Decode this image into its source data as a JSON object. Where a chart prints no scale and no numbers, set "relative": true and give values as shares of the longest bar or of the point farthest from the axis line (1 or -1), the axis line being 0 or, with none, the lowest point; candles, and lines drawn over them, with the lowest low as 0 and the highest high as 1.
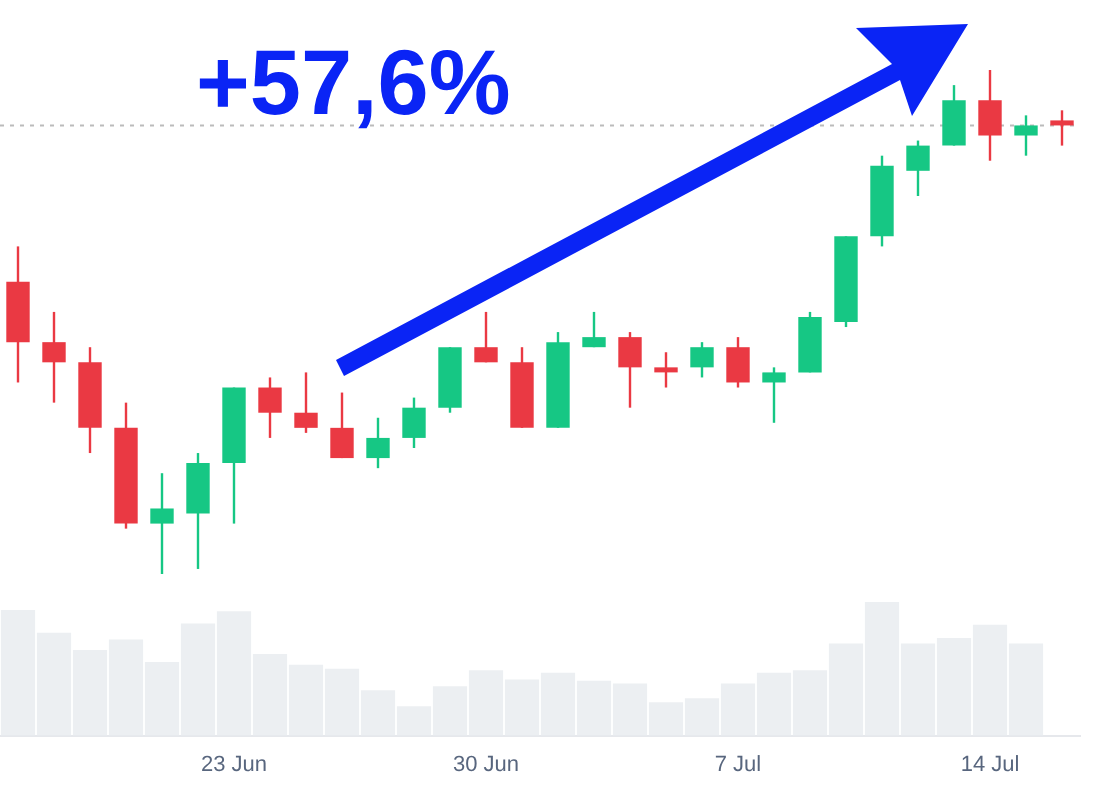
{
  "chart_data": [
    {
      "type": "candlestick",
      "relative": true,
      "tick_labels": false,
      "categories": [
        null,
        null,
        null,
        null,
        null,
        null,
        null,
        null,
        null,
        null,
        null,
        null,
        null,
        null,
        null,
        null,
        null,
        null,
        null,
        null,
        null,
        null,
        null,
        null,
        null,
        null,
        null,
        null,
        null,
        null
      ],
      "ohlc": [
        [
          0.58,
          0.65,
          0.38,
          0.46
        ],
        [
          0.46,
          0.52,
          0.34,
          0.42
        ],
        [
          0.42,
          0.45,
          0.24,
          0.29
        ],
        [
          0.29,
          0.34,
          0.09,
          0.1
        ],
        [
          0.1,
          0.2,
          0,
          0.13
        ],
        [
          0.12,
          0.24,
          0.01,
          0.22
        ],
        [
          0.22,
          0.37,
          0.1,
          0.37
        ],
        [
          0.37,
          0.39,
          0.27,
          0.32
        ],
        [
          0.32,
          0.4,
          0.28,
          0.29
        ],
        [
          0.29,
          0.36,
          0.23,
          0.23
        ],
        [
          0.23,
          0.31,
          0.21,
          0.27
        ],
        [
          0.27,
          0.35,
          0.25,
          0.33
        ],
        [
          0.33,
          0.45,
          0.32,
          0.45
        ],
        [
          0.45,
          0.52,
          0.42,
          0.42
        ],
        [
          0.42,
          0.45,
          0.29,
          0.29
        ],
        [
          0.29,
          0.48,
          0.29,
          0.46
        ],
        [
          0.45,
          0.52,
          0.45,
          0.47
        ],
        [
          0.47,
          0.48,
          0.33,
          0.41
        ],
        [
          0.41,
          0.44,
          0.37,
          0.4
        ],
        [
          0.41,
          0.46,
          0.39,
          0.45
        ],
        [
          0.45,
          0.47,
          0.37,
          0.38
        ],
        [
          0.38,
          0.41,
          0.3,
          0.4
        ],
        [
          0.4,
          0.52,
          0.4,
          0.51
        ],
        [
          0.5,
          0.67,
          0.49,
          0.67
        ],
        [
          0.67,
          0.83,
          0.65,
          0.81
        ],
        [
          0.8,
          0.86,
          0.75,
          0.85
        ],
        [
          0.85,
          0.97,
          0.85,
          0.94
        ],
        [
          0.94,
          1,
          0.82,
          0.87
        ],
        [
          0.87,
          0.91,
          0.83,
          0.89
        ],
        [
          0.9,
          0.92,
          0.85,
          0.89
        ]
      ],
      "colors": [
        "#ea3943",
        "#ea3943",
        "#ea3943",
        "#ea3943",
        "#16c784",
        "#16c784",
        "#16c784",
        "#ea3943",
        "#ea3943",
        "#ea3943",
        "#16c784",
        "#16c784",
        "#16c784",
        "#ea3943",
        "#ea3943",
        "#16c784",
        "#16c784",
        "#ea3943",
        "#ea3943",
        "#16c784",
        "#ea3943",
        "#16c784",
        "#16c784",
        "#16c784",
        "#16c784",
        "#16c784",
        "#16c784",
        "#ea3943",
        "#16c784",
        "#ea3943"
      ],
      "ref_lines": [
        {
          "axis": "y",
          "value": 0.89,
          "color": "#bbbbbb",
          "line_style": "dotted"
        }
      ],
      "annotations": [
        "+57,6%"
      ]
    },
    {
      "type": "bar",
      "relative": true,
      "tick_labels": "x",
      "color": "#eceff2",
      "categories": [
        null,
        null,
        null,
        null,
        null,
        null,
        "23 Jun",
        null,
        null,
        null,
        null,
        null,
        null,
        "30 Jun",
        null,
        null,
        null,
        null,
        null,
        null,
        "7 Jul",
        null,
        null,
        null,
        null,
        null,
        null,
        "14 Jul",
        null,
        null
      ],
      "values": [
        0.94,
        0.77,
        0.64,
        0.72,
        0.55,
        0.84,
        0.93,
        0.61,
        0.53,
        0.5,
        0.34,
        0.22,
        0.37,
        0.49,
        0.42,
        0.47,
        0.41,
        0.39,
        0.25,
        0.28,
        0.39,
        0.47,
        0.49,
        0.69,
        1,
        0.69,
        0.73,
        0.83,
        0.69,
        null
      ]
    }
  ]
}
